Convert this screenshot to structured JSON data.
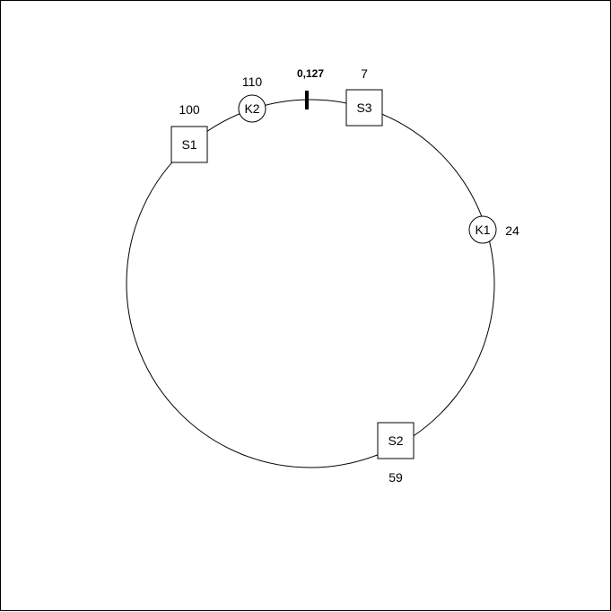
{
  "ring": {
    "marker": {
      "label": "0,127"
    }
  },
  "servers": [
    {
      "id": "s1",
      "label": "S1",
      "position": "100"
    },
    {
      "id": "s2",
      "label": "S2",
      "position": "59"
    },
    {
      "id": "s3",
      "label": "S3",
      "position": "7"
    }
  ],
  "keys": [
    {
      "id": "k1",
      "label": "K1",
      "position": "24"
    },
    {
      "id": "k2",
      "label": "K2",
      "position": "110"
    }
  ],
  "colors": {
    "stroke": "#000000",
    "fill": "#ffffff"
  }
}
